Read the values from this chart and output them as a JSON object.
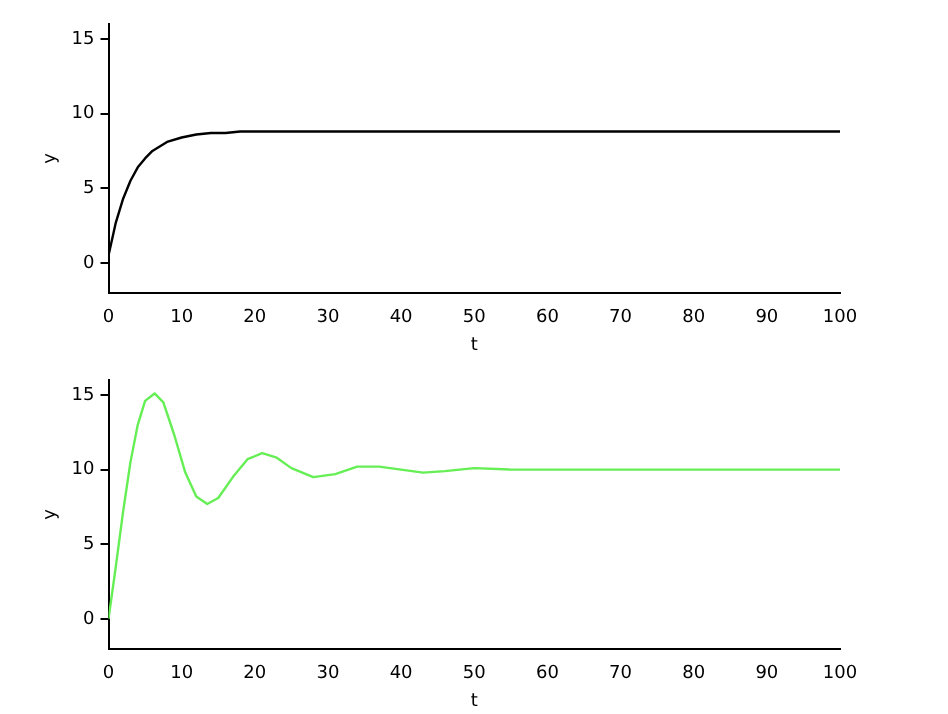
{
  "chart_data": [
    {
      "type": "line",
      "xlabel": "t",
      "ylabel": "y",
      "xlim": [
        0,
        100
      ],
      "ylim": [
        -2,
        16
      ],
      "xticks": [
        0,
        10,
        20,
        30,
        40,
        50,
        60,
        70,
        80,
        90,
        100
      ],
      "yticks": [
        0,
        5,
        10,
        15
      ],
      "grid": false,
      "legend": false,
      "marker": "none",
      "line_style": "solid",
      "series": [
        {
          "color": "#000000",
          "x": [
            0,
            0.5,
            1,
            1.5,
            2,
            3,
            4,
            5,
            6,
            7,
            8,
            10,
            12,
            14,
            16,
            18,
            20,
            25,
            30,
            40,
            60,
            80,
            100
          ],
          "values": [
            0.5,
            1.6,
            2.7,
            3.5,
            4.3,
            5.5,
            6.4,
            7.0,
            7.5,
            7.8,
            8.1,
            8.4,
            8.6,
            8.7,
            8.7,
            8.8,
            8.8,
            8.8,
            8.8,
            8.8,
            8.8,
            8.8,
            8.8
          ]
        }
      ]
    },
    {
      "type": "line",
      "xlabel": "t",
      "ylabel": "y",
      "xlim": [
        0,
        100
      ],
      "ylim": [
        -2,
        16
      ],
      "xticks": [
        0,
        10,
        20,
        30,
        40,
        50,
        60,
        70,
        80,
        90,
        100
      ],
      "yticks": [
        0,
        5,
        10,
        15
      ],
      "grid": false,
      "legend": false,
      "marker": "none",
      "line_style": "solid",
      "series": [
        {
          "color": "#66ee55",
          "x": [
            0,
            1,
            2,
            3,
            4,
            5,
            6.3,
            7.5,
            9,
            10.5,
            12,
            13.5,
            15,
            17,
            19,
            21,
            23,
            25,
            28,
            31,
            34,
            37,
            40,
            43,
            46,
            50,
            55,
            60,
            70,
            80,
            90,
            100
          ],
          "values": [
            0,
            3.5,
            7.2,
            10.5,
            13,
            14.6,
            15.1,
            14.5,
            12.3,
            9.8,
            8.2,
            7.7,
            8.1,
            9.5,
            10.7,
            11.1,
            10.8,
            10.1,
            9.5,
            9.7,
            10.2,
            10.2,
            10.0,
            9.8,
            9.9,
            10.1,
            10.0,
            10.0,
            10.0,
            10.0,
            10.0,
            10.0
          ]
        }
      ]
    }
  ]
}
